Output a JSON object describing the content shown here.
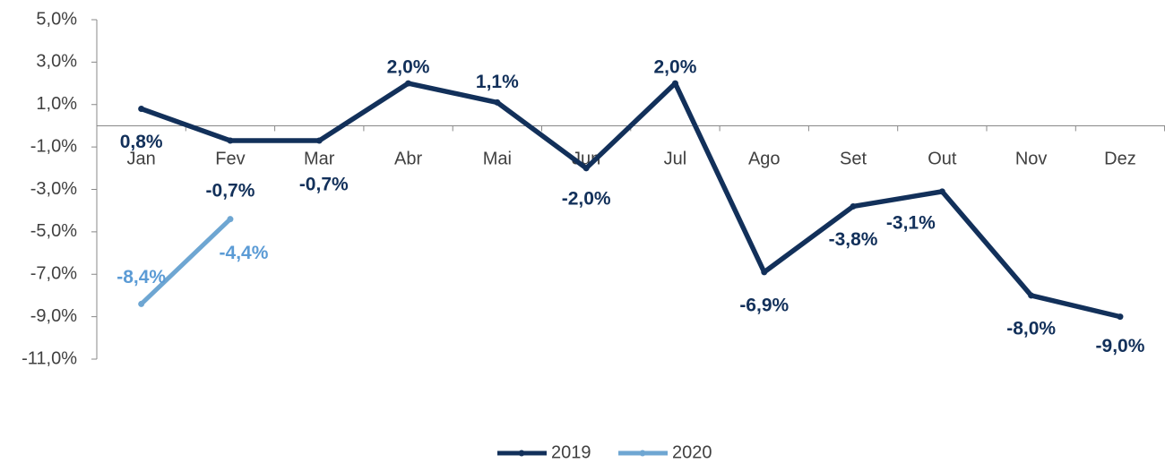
{
  "chart_data": {
    "type": "line",
    "categories": [
      "Jan",
      "Fev",
      "Mar",
      "Abr",
      "Mai",
      "Jun",
      "Jul",
      "Ago",
      "Set",
      "Out",
      "Nov",
      "Dez"
    ],
    "series": [
      {
        "name": "2019",
        "color": "#12305a",
        "values": [
          0.8,
          -0.7,
          -0.7,
          2.0,
          1.1,
          -2.0,
          2.0,
          -6.9,
          -3.8,
          -3.1,
          -8.0,
          -9.0
        ],
        "value_labels": [
          "0,8%",
          "-0,7%",
          "-0,7%",
          "2,0%",
          "1,1%",
          "-2,0%",
          "2,0%",
          "-6,9%",
          "-3,8%",
          "-3,1%",
          "-8,0%",
          "-9,0%"
        ]
      },
      {
        "name": "2020",
        "color": "#6ea6d2",
        "values": [
          -8.4,
          -4.4,
          null,
          null,
          null,
          null,
          null,
          null,
          null,
          null,
          null,
          null
        ],
        "value_labels": [
          "-8,4%",
          "-4,4%",
          null,
          null,
          null,
          null,
          null,
          null,
          null,
          null,
          null,
          null
        ]
      }
    ],
    "ylim": [
      -11,
      5
    ],
    "yticks": [
      {
        "value": 5,
        "label": "5,0%"
      },
      {
        "value": 3,
        "label": "3,0%"
      },
      {
        "value": 1,
        "label": "1,0%"
      },
      {
        "value": -1,
        "label": "-1,0%"
      },
      {
        "value": -3,
        "label": "-3,0%"
      },
      {
        "value": -5,
        "label": "-5,0%"
      },
      {
        "value": -7,
        "label": "-7,0%"
      },
      {
        "value": -9,
        "label": "-9,0%"
      },
      {
        "value": -11,
        "label": "-11,0%"
      }
    ],
    "legend": "bottom"
  }
}
